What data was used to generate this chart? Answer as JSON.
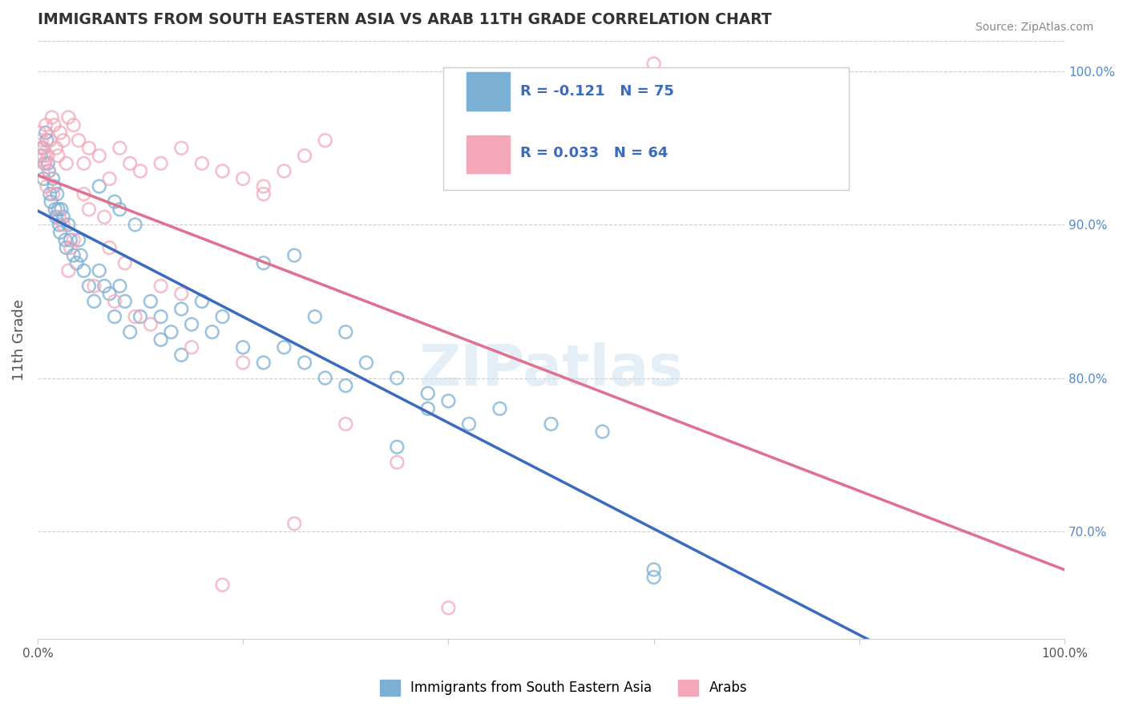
{
  "title": "IMMIGRANTS FROM SOUTH EASTERN ASIA VS ARAB 11TH GRADE CORRELATION CHART",
  "source": "Source: ZipAtlas.com",
  "ylabel": "11th Grade",
  "xlim": [
    0.0,
    100.0
  ],
  "ylim": [
    63.0,
    102.0
  ],
  "blue_color": "#7bafd4",
  "pink_color": "#f4a7b9",
  "blue_line_color": "#3a6bbf",
  "pink_line_color": "#e07090",
  "legend_blue_R": "R = -0.121",
  "legend_blue_N": "N = 75",
  "legend_pink_R": "R = 0.033",
  "legend_pink_N": "N = 64",
  "blue_scatter_x": [
    0.3,
    0.5,
    0.6,
    0.7,
    0.8,
    0.9,
    1.0,
    1.1,
    1.2,
    1.3,
    1.5,
    1.6,
    1.7,
    1.8,
    1.9,
    2.0,
    2.1,
    2.2,
    2.3,
    2.5,
    2.7,
    2.8,
    3.0,
    3.2,
    3.5,
    3.8,
    4.0,
    4.2,
    4.5,
    5.0,
    5.5,
    6.0,
    6.5,
    7.0,
    7.5,
    8.0,
    8.5,
    9.0,
    10.0,
    11.0,
    12.0,
    13.0,
    14.0,
    15.0,
    16.0,
    17.0,
    18.0,
    20.0,
    22.0,
    24.0,
    26.0,
    28.0,
    30.0,
    32.0,
    35.0,
    38.0,
    40.0,
    42.0,
    45.0,
    50.0,
    55.0,
    60.0,
    35.0,
    38.0,
    22.0,
    25.0,
    27.0,
    30.0,
    8.0,
    9.5,
    6.0,
    7.5,
    12.0,
    14.0,
    60.0
  ],
  "blue_scatter_y": [
    94.5,
    95.0,
    93.0,
    94.0,
    96.0,
    95.5,
    94.0,
    93.5,
    92.0,
    91.5,
    93.0,
    92.5,
    91.0,
    90.5,
    92.0,
    91.0,
    90.0,
    89.5,
    91.0,
    90.5,
    89.0,
    88.5,
    90.0,
    89.0,
    88.0,
    87.5,
    89.0,
    88.0,
    87.0,
    86.0,
    85.0,
    87.0,
    86.0,
    85.5,
    84.0,
    86.0,
    85.0,
    83.0,
    84.0,
    85.0,
    84.0,
    83.0,
    84.5,
    83.5,
    85.0,
    83.0,
    84.0,
    82.0,
    81.0,
    82.0,
    81.0,
    80.0,
    79.5,
    81.0,
    80.0,
    79.0,
    78.5,
    77.0,
    78.0,
    77.0,
    76.5,
    67.0,
    75.5,
    78.0,
    87.5,
    88.0,
    84.0,
    83.0,
    91.0,
    90.0,
    92.5,
    91.5,
    82.5,
    81.5,
    67.5
  ],
  "pink_scatter_x": [
    0.2,
    0.4,
    0.6,
    0.8,
    1.0,
    1.2,
    1.4,
    1.6,
    1.8,
    2.0,
    2.2,
    2.5,
    2.8,
    3.0,
    3.5,
    4.0,
    4.5,
    5.0,
    6.0,
    7.0,
    8.0,
    9.0,
    10.0,
    12.0,
    14.0,
    16.0,
    18.0,
    20.0,
    22.0,
    24.0,
    26.0,
    28.0,
    12.0,
    14.0,
    5.0,
    6.5,
    8.5,
    3.0,
    4.5,
    7.0,
    20.0,
    0.5,
    0.7,
    0.9,
    1.5,
    2.5,
    3.5,
    60.0,
    25.0,
    35.0,
    18.0,
    0.3,
    0.6,
    1.1,
    2.1,
    3.2,
    5.5,
    7.5,
    9.5,
    11.0,
    15.0,
    40.0,
    22.0,
    30.0
  ],
  "pink_scatter_y": [
    96.0,
    95.5,
    95.0,
    96.5,
    94.5,
    95.5,
    97.0,
    96.5,
    95.0,
    94.5,
    96.0,
    95.5,
    94.0,
    97.0,
    96.5,
    95.5,
    94.0,
    95.0,
    94.5,
    93.0,
    95.0,
    94.0,
    93.5,
    94.0,
    95.0,
    94.0,
    93.5,
    93.0,
    92.0,
    93.5,
    94.5,
    95.5,
    86.0,
    85.5,
    91.0,
    90.5,
    87.5,
    87.0,
    92.0,
    88.5,
    81.0,
    93.5,
    94.0,
    92.5,
    92.0,
    90.0,
    89.0,
    100.5,
    70.5,
    74.5,
    66.5,
    95.0,
    94.5,
    93.5,
    90.5,
    88.5,
    86.0,
    85.0,
    84.0,
    83.5,
    82.0,
    65.0,
    92.5,
    77.0
  ]
}
